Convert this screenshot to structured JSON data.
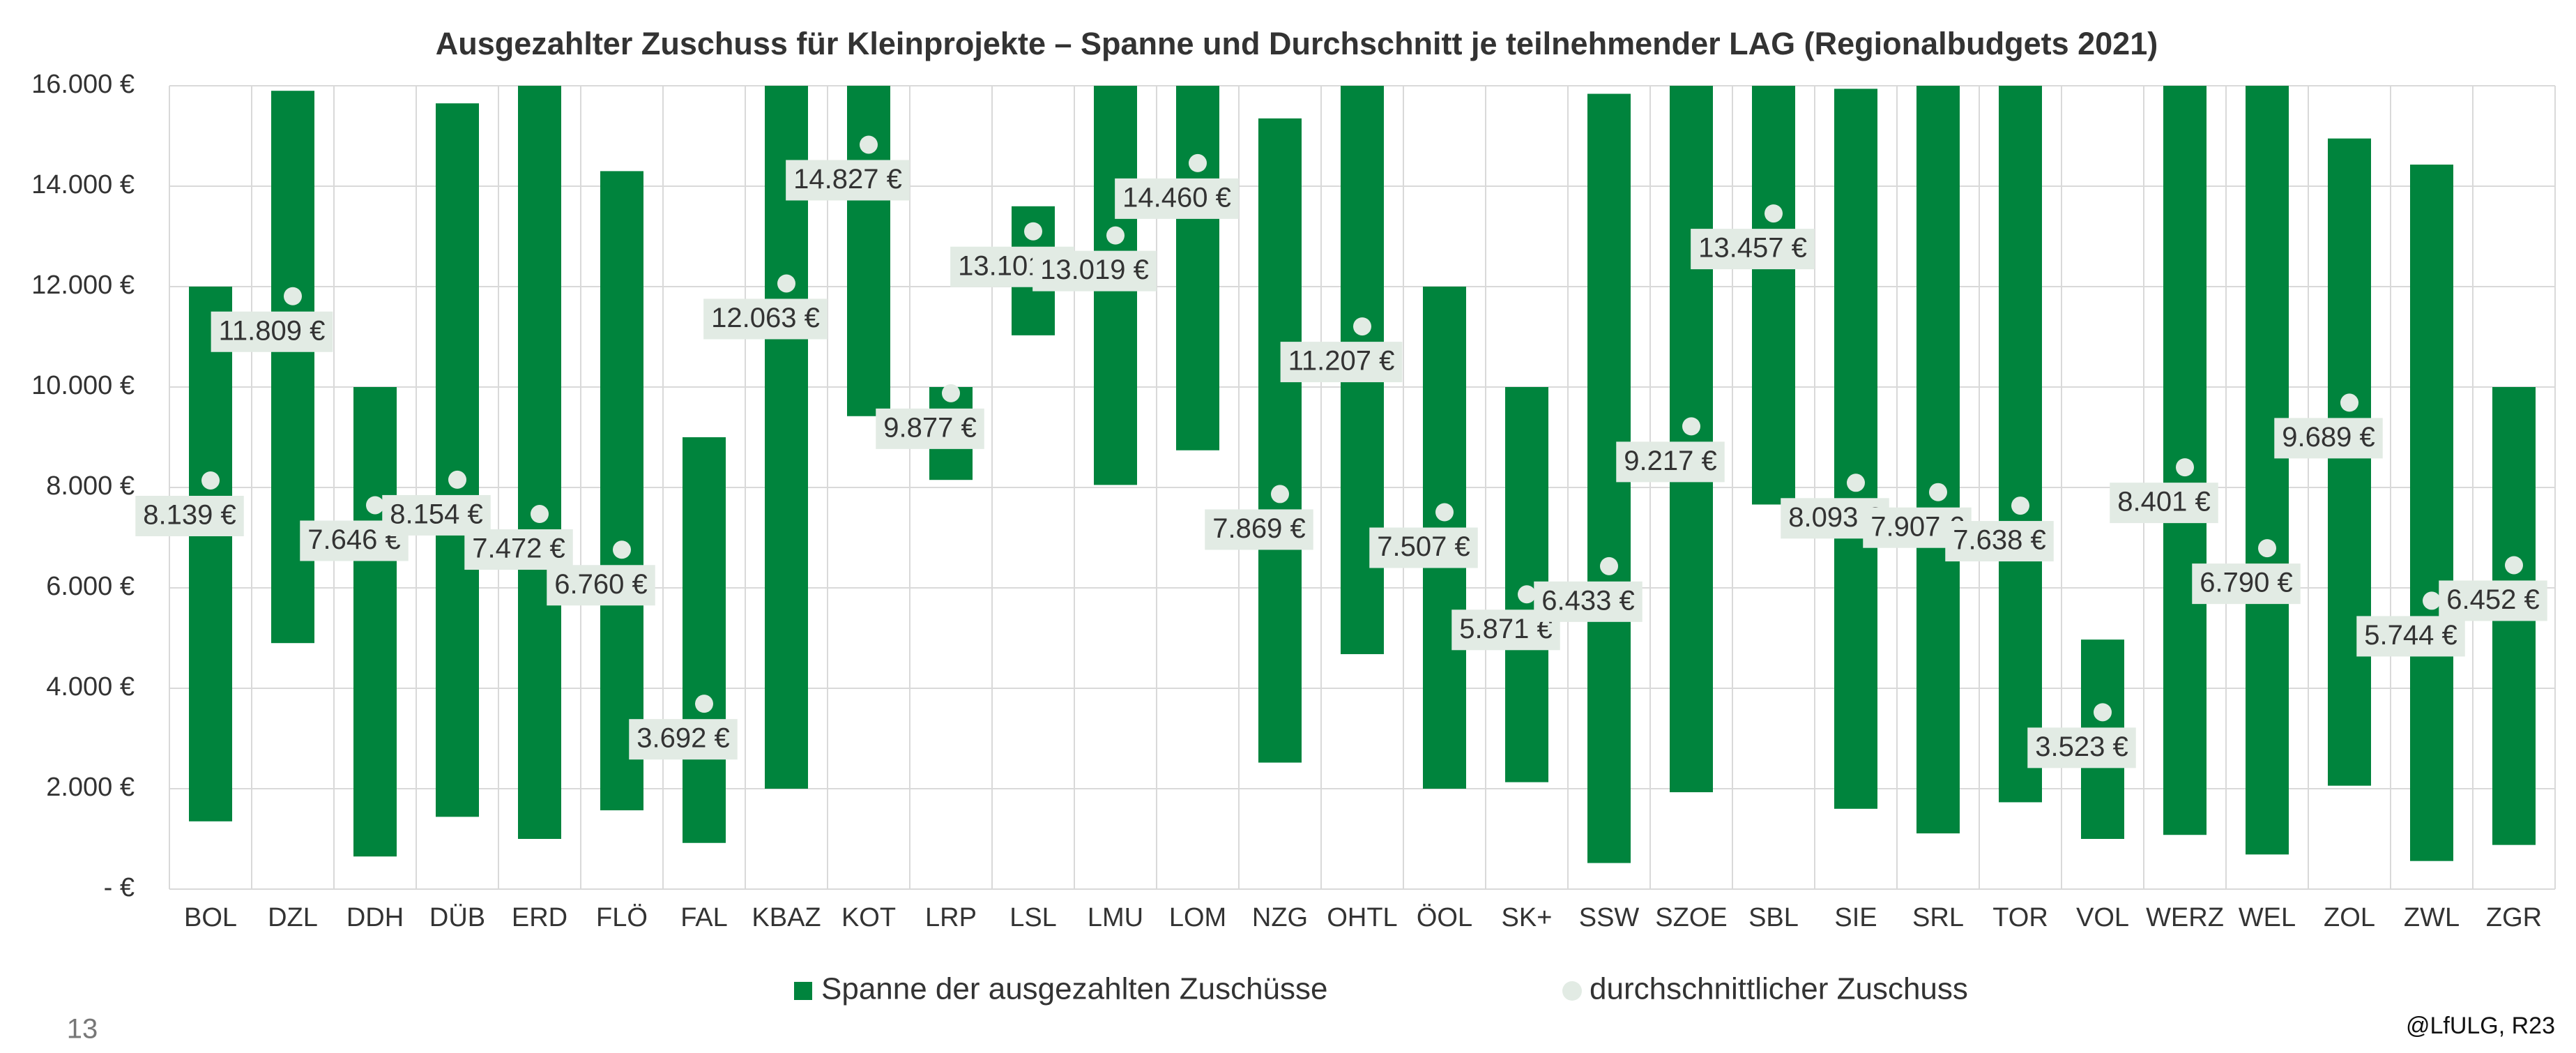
{
  "chart_data": {
    "type": "floating_bar",
    "title": "Ausgezahlter Zuschuss für Kleinprojekte – Spanne und Durchschnitt je teilnehmender LAG (Regionalbudgets 2021)",
    "categories": [
      "BOL",
      "DZL",
      "DDH",
      "DÜB",
      "ERD",
      "FLÖ",
      "FAL",
      "KBAZ",
      "KOT",
      "LRP",
      "LSL",
      "LMU",
      "LOM",
      "NZG",
      "OHTL",
      "ÖOL",
      "SK+",
      "SSW",
      "SZOE",
      "SBL",
      "SIE",
      "SRL",
      "TOR",
      "VOL",
      "WERZ",
      "WEL",
      "ZOL",
      "ZWL",
      "ZGR"
    ],
    "series": [
      {
        "name": "Spanne der ausgezahlten Zuschüsse",
        "color": "#00843d",
        "low": [
          1350,
          4900,
          650,
          1440,
          1000,
          1570,
          920,
          2000,
          9420,
          8150,
          11030,
          8050,
          8740,
          2520,
          4680,
          2000,
          2130,
          520,
          1930,
          7660,
          1600,
          1110,
          1730,
          1000,
          1080,
          690,
          2060,
          560,
          880
        ],
        "high": [
          12000,
          15900,
          10000,
          15650,
          16000,
          14300,
          9000,
          16000,
          16000,
          10000,
          13600,
          16000,
          16000,
          15350,
          16000,
          12000,
          10000,
          15840,
          16000,
          16000,
          15940,
          16000,
          16000,
          4970,
          16000,
          16000,
          14950,
          14430,
          10000
        ]
      },
      {
        "name": "durchschnittlicher Zuschuss",
        "color": "#e2ebe4",
        "values": [
          8139,
          11809,
          7646,
          8154,
          7472,
          6760,
          3692,
          12063,
          14827,
          9877,
          13101,
          13019,
          14460,
          7869,
          11207,
          7507,
          5871,
          6433,
          9217,
          13457,
          8093,
          7907,
          7638,
          3523,
          8401,
          6790,
          9689,
          5744,
          6452
        ],
        "value_labels": [
          "8.139 €",
          "11.809 €",
          "7.646 €",
          "8.154 €",
          "7.472 €",
          "6.760 €",
          "3.692 €",
          "12.063 €",
          "14.827 €",
          "9.877 €",
          "13.101 €",
          "13.019 €",
          "14.460 €",
          "7.869 €",
          "11.207 €",
          "7.507 €",
          "5.871 €",
          "6.433 €",
          "9.217 €",
          "13.457 €",
          "8.093 €",
          "7.907 €",
          "7.638 €",
          "3.523 €",
          "8.401 €",
          "6.790 €",
          "9.689 €",
          "5.744 €",
          "6.452 €"
        ]
      }
    ],
    "ylim": [
      0,
      16000
    ],
    "yticks": [
      {
        "value": 0,
        "label": "-  €"
      },
      {
        "value": 2000,
        "label": "2.000 €"
      },
      {
        "value": 4000,
        "label": "4.000 €"
      },
      {
        "value": 6000,
        "label": "6.000 €"
      },
      {
        "value": 8000,
        "label": "8.000 €"
      },
      {
        "value": 10000,
        "label": "10.000 €"
      },
      {
        "value": 12000,
        "label": "12.000 €"
      },
      {
        "value": 14000,
        "label": "14.000 €"
      },
      {
        "value": 16000,
        "label": "16.000 €"
      }
    ],
    "grid": true,
    "page_number": "13",
    "source": "@LfULG, R23"
  }
}
